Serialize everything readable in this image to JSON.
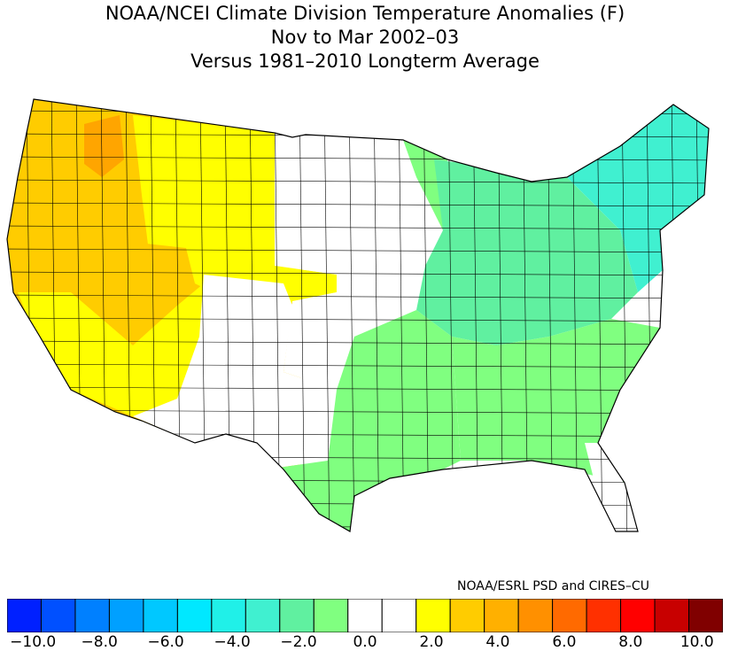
{
  "title": {
    "line1": "NOAA/NCEI Climate Division Temperature Anomalies (F)",
    "line2": "Nov to Mar 2002–03",
    "line3": "Versus 1981–2010 Longterm Average"
  },
  "credit": "NOAA/ESRL PSD and CIRES–CU",
  "map": {
    "regions": [
      {
        "name": "pacific-northwest-coast",
        "anomaly": 2.5,
        "color": "#ffcc00"
      },
      {
        "name": "northern-rockies",
        "anomaly": 2.5,
        "color": "#ffcc00"
      },
      {
        "name": "idaho-core",
        "anomaly": 3.5,
        "color": "#ffa500"
      },
      {
        "name": "northern-plains-west",
        "anomaly": 1.5,
        "color": "#ffff00"
      },
      {
        "name": "california-nevada",
        "anomaly": 2.5,
        "color": "#ffcc00"
      },
      {
        "name": "southern-california",
        "anomaly": 1.5,
        "color": "#ffff00"
      },
      {
        "name": "four-corners",
        "anomaly": 0.0,
        "color": "#ffffff"
      },
      {
        "name": "central-plains",
        "anomaly": 0.0,
        "color": "#ffffff"
      },
      {
        "name": "minnesota-north",
        "anomaly": -1.5,
        "color": "#80ff80"
      },
      {
        "name": "great-lakes-ohio-valley",
        "anomaly": -2.5,
        "color": "#60f0a0"
      },
      {
        "name": "southeast",
        "anomaly": -1.5,
        "color": "#80ff80"
      },
      {
        "name": "texas-oklahoma",
        "anomaly": -1.5,
        "color": "#80ff80"
      },
      {
        "name": "northeast",
        "anomaly": -3.5,
        "color": "#40f0d0"
      },
      {
        "name": "florida-peninsula",
        "anomaly": 0.0,
        "color": "#ffffff"
      }
    ]
  },
  "colorbar": {
    "colors": [
      "#0020ff",
      "#0050ff",
      "#0080ff",
      "#00a0ff",
      "#00c8ff",
      "#00e8ff",
      "#20f0e8",
      "#40f0d0",
      "#60f0a0",
      "#80ff80",
      "#ffffff",
      "#ffffff",
      "#ffff00",
      "#ffcc00",
      "#ffb000",
      "#ff9000",
      "#ff6a00",
      "#ff3000",
      "#ff0000",
      "#c80000",
      "#800000"
    ],
    "ticks": [
      "−10.0",
      "−8.0",
      "−6.0",
      "−4.0",
      "−2.0",
      "0.0",
      "2.0",
      "4.0",
      "6.0",
      "8.0",
      "10.0"
    ]
  }
}
